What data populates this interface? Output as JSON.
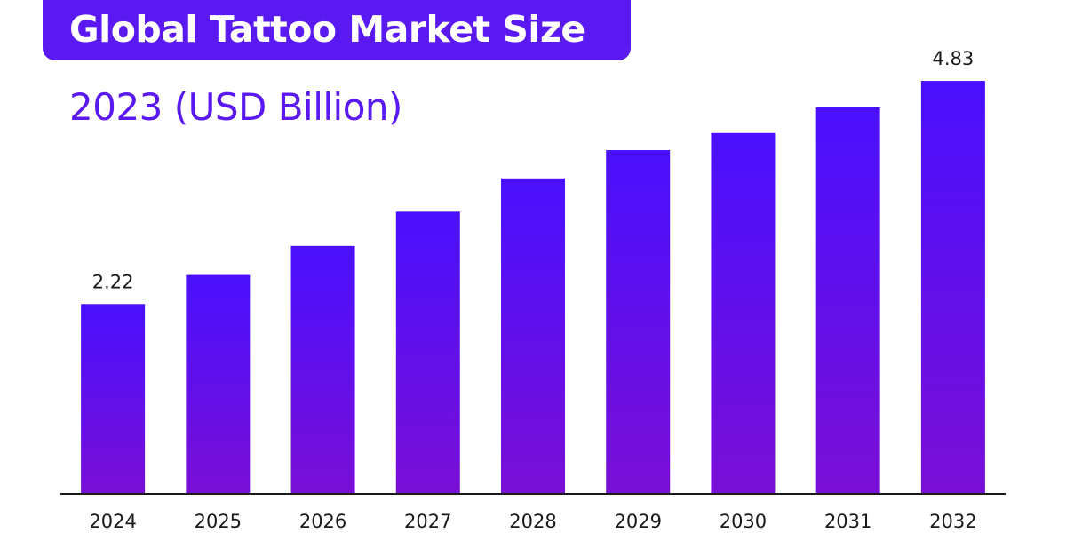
{
  "title": "Global Tattoo Market Size",
  "subtitle": "2023 (USD Billion)",
  "colors": {
    "banner": "#5a19f0",
    "bar_top": "#4a10ff",
    "bar_bottom": "#7a0fd6",
    "axis": "#1a1a1a"
  },
  "chart_data": {
    "type": "bar",
    "categories": [
      "2024",
      "2025",
      "2026",
      "2027",
      "2028",
      "2029",
      "2030",
      "2031",
      "2032"
    ],
    "values": [
      2.22,
      2.56,
      2.9,
      3.3,
      3.69,
      4.02,
      4.22,
      4.52,
      4.83
    ],
    "data_labels": {
      "2024": "2.22",
      "2032": "4.83"
    },
    "ylim": [
      0,
      5.35
    ],
    "grid": false
  }
}
